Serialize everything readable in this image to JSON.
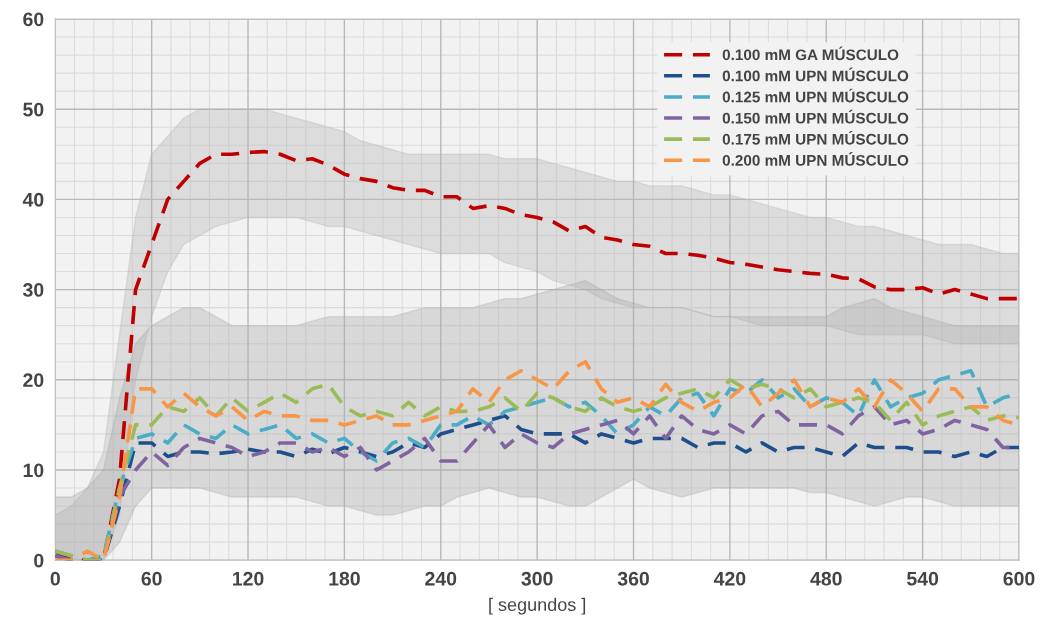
{
  "chart_data": {
    "type": "line",
    "xlabel": "[ segundos ]",
    "x": [
      0,
      10,
      20,
      30,
      40,
      50,
      60,
      70,
      80,
      90,
      100,
      110,
      120,
      130,
      140,
      150,
      160,
      170,
      180,
      190,
      200,
      210,
      220,
      230,
      240,
      250,
      260,
      270,
      280,
      290,
      300,
      310,
      320,
      330,
      340,
      350,
      360,
      370,
      380,
      390,
      400,
      410,
      420,
      430,
      440,
      450,
      460,
      470,
      480,
      490,
      500,
      510,
      520,
      530,
      540,
      550,
      560,
      570,
      580,
      590,
      600
    ],
    "xlim": [
      0,
      600
    ],
    "xticks": [
      0,
      60,
      120,
      180,
      240,
      300,
      360,
      420,
      480,
      540,
      600
    ],
    "ylim": [
      0,
      60
    ],
    "yticks": [
      0,
      10,
      20,
      30,
      40,
      50,
      60
    ],
    "grid": true,
    "legend": "top right",
    "line_style": "dashed",
    "marker": "none",
    "series": [
      {
        "name": "0.100 mM GA MÚSCULO",
        "color": "#c00000",
        "values": [
          1,
          0,
          0,
          0,
          9,
          30,
          35,
          40,
          42,
          44,
          45,
          45,
          45.2,
          45.3,
          45,
          44.3,
          44.5,
          43.8,
          42.8,
          42.3,
          42,
          41.3,
          41,
          41,
          40.3,
          40.3,
          39,
          39.3,
          39,
          38.3,
          38,
          37.5,
          36.5,
          37,
          35.8,
          35.5,
          35,
          34.8,
          34,
          34,
          33.8,
          33.5,
          33,
          32.8,
          32.5,
          32.2,
          32,
          31.8,
          31.7,
          31.3,
          31.2,
          30.3,
          30,
          30,
          30.2,
          29.5,
          30,
          29.5,
          29,
          29,
          29
        ],
        "upper": [
          5,
          6,
          8,
          12,
          25,
          38,
          45,
          47,
          49,
          50,
          50,
          50,
          50,
          50,
          49.5,
          49,
          48.5,
          48,
          47.5,
          46.5,
          46,
          45.5,
          45,
          45,
          45,
          45,
          45,
          45,
          44.5,
          44.5,
          44.5,
          44,
          43.5,
          43,
          42.5,
          42,
          42,
          41.5,
          41.5,
          41.5,
          41,
          40.5,
          40.5,
          40,
          39.5,
          39,
          38.5,
          38,
          38,
          37.5,
          37,
          37,
          36.5,
          36,
          35.5,
          35,
          35,
          35,
          34.5,
          34,
          34
        ],
        "lower": [
          0,
          0,
          0,
          0,
          5,
          20,
          27,
          32,
          35,
          36,
          37,
          37.5,
          38,
          38,
          38,
          38,
          37.5,
          37,
          37,
          36.5,
          36,
          35.5,
          35,
          34.5,
          34,
          34,
          34,
          34,
          33,
          32.5,
          32,
          31,
          30.5,
          30,
          29,
          28.5,
          28,
          28,
          28,
          28,
          27.5,
          27,
          27,
          26.5,
          26,
          26,
          26,
          26,
          26,
          25.5,
          25,
          25,
          25,
          25,
          25,
          24.5,
          24,
          24,
          24,
          24,
          24
        ]
      },
      {
        "name": "0.100 mM UPN MÚSCULO",
        "color": "#1f4e8c",
        "values": [
          0.5,
          0,
          0,
          0,
          6,
          13,
          13,
          11.5,
          12,
          12,
          11.8,
          12,
          12.3,
          12,
          12,
          11.5,
          12.3,
          11.8,
          12.5,
          12,
          11.5,
          12,
          13,
          12.5,
          14,
          14.5,
          15,
          15.5,
          16,
          14.5,
          14,
          14,
          14,
          13,
          14,
          13.5,
          13,
          13.5,
          13.5,
          13.5,
          12.5,
          13,
          13,
          12,
          13,
          12,
          12.5,
          12.5,
          12,
          11.5,
          13,
          12.5,
          12.5,
          12.5,
          12,
          12,
          11.5,
          12,
          11.5,
          12.5,
          12.5
        ],
        "upper": [
          7,
          7,
          8,
          10,
          18,
          24,
          26,
          27,
          28,
          28,
          27,
          26,
          26,
          26,
          26,
          26,
          26.5,
          27,
          27,
          27,
          27,
          27,
          27.5,
          28,
          28,
          28,
          28,
          28.5,
          29,
          29,
          29.5,
          30,
          30.5,
          31,
          30,
          29,
          28.5,
          28,
          28,
          28,
          27.5,
          27,
          27,
          27,
          27,
          27,
          27,
          27,
          27,
          28,
          28.5,
          29,
          28,
          27.5,
          27,
          26.5,
          26,
          26,
          26,
          26,
          26
        ],
        "lower": [
          0,
          0,
          0,
          0,
          2,
          6,
          8,
          8,
          8,
          8,
          7.5,
          7,
          7,
          7,
          7,
          7,
          6.5,
          6,
          6,
          5.5,
          5,
          5,
          5.5,
          6,
          6,
          7,
          7.5,
          8,
          7.5,
          7,
          7,
          6.5,
          6,
          6,
          7,
          8,
          9,
          8,
          7.5,
          7,
          7.5,
          8,
          8,
          8,
          8,
          8,
          8,
          7.5,
          7.5,
          7,
          6.5,
          6,
          6.5,
          7,
          7,
          6.5,
          6,
          6,
          6,
          6,
          6
        ]
      },
      {
        "name": "0.125 mM UPN MÚSCULO",
        "color": "#4bacc6",
        "values": [
          1,
          0.5,
          0,
          0.5,
          8,
          13.5,
          14,
          13,
          15,
          14,
          13.5,
          15,
          14,
          14.5,
          15,
          13.5,
          14,
          13,
          13.5,
          12,
          11,
          13,
          13.5,
          12.5,
          15,
          15,
          16,
          15,
          16.5,
          17,
          17.5,
          18,
          17,
          17.5,
          16,
          14,
          15,
          17,
          16,
          18,
          18.5,
          16,
          19,
          18.5,
          20,
          18,
          19,
          17,
          18,
          17.5,
          16,
          20,
          17,
          18,
          18.5,
          20,
          20.5,
          21,
          17,
          18,
          18.5
        ]
      },
      {
        "name": "0.150 mM UPN MÚSCULO",
        "color": "#8064a2",
        "values": [
          0.5,
          0,
          0,
          0,
          7,
          10,
          12,
          10.5,
          12.5,
          13.5,
          13,
          12.5,
          11.5,
          12,
          13,
          13,
          12,
          12.5,
          11.5,
          12.5,
          10,
          11,
          12,
          13.5,
          11,
          11,
          13,
          15,
          12.5,
          14,
          13,
          12.5,
          14,
          14.5,
          15,
          15.5,
          14,
          16,
          13.5,
          16,
          14.5,
          14,
          15,
          14,
          16,
          16.5,
          15,
          15,
          15,
          14,
          16,
          17,
          15,
          15.5,
          14,
          14.5,
          15.5,
          15,
          14.5,
          12.5,
          12.5
        ]
      },
      {
        "name": "0.175 mM UPN MÚSCULO",
        "color": "#9bbb59",
        "values": [
          1,
          0.5,
          0,
          0,
          8,
          15,
          15,
          17,
          16.5,
          18,
          16,
          18,
          16.5,
          17.5,
          18.5,
          17.5,
          19,
          19.5,
          17,
          16,
          16.5,
          16,
          17.5,
          16,
          17,
          16.5,
          16.5,
          17,
          18,
          16.5,
          18.5,
          18,
          17,
          16.5,
          18,
          17,
          16.5,
          17,
          18,
          18.5,
          19,
          18,
          20,
          19,
          19.5,
          19,
          18,
          19,
          17,
          17.5,
          18,
          17.5,
          15.5,
          17.5,
          15,
          16,
          16.5,
          17,
          15.5,
          16,
          15.8
        ]
      },
      {
        "name": "0.200 mM UPN MÚSCULO",
        "color": "#f79646",
        "values": [
          0,
          0,
          1,
          0,
          7,
          19,
          19,
          17,
          18.5,
          17,
          16,
          17,
          15.5,
          16.5,
          16,
          16,
          15.5,
          15.5,
          15,
          15.5,
          16,
          15,
          15,
          15.5,
          16,
          16.5,
          19,
          17.5,
          20,
          21,
          20,
          19,
          21,
          22,
          19,
          17.5,
          18,
          17,
          19.5,
          17.5,
          16.5,
          17.5,
          18,
          19.5,
          17,
          18.5,
          20,
          17,
          18,
          17.5,
          19,
          17,
          20,
          18.5,
          16.5,
          19,
          19,
          17,
          17,
          15.5,
          15
        ]
      }
    ]
  }
}
